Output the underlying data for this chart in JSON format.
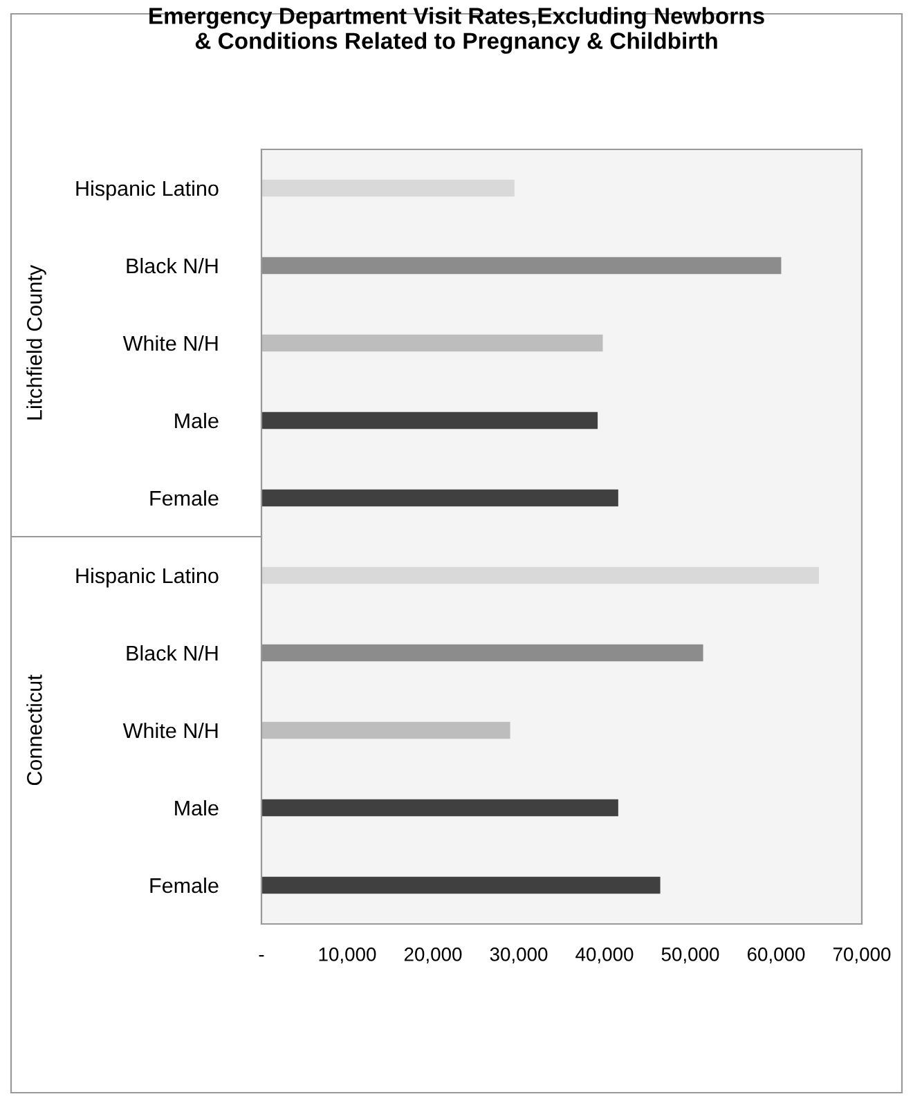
{
  "chart_data": {
    "type": "bar",
    "orientation": "horizontal",
    "title": "Emergency Department Visit Rates,Excluding Newborns\n& Conditions Related to Pregnancy & Childbirth",
    "categories": [
      "Hispanic Latino",
      "Black N/H",
      "White N/H",
      "Male",
      "Female",
      "Hispanic Latino",
      "Black N/H",
      "White N/H",
      "Male",
      "Female"
    ],
    "values": [
      29500,
      60600,
      39800,
      39200,
      41600,
      65000,
      51500,
      29000,
      41600,
      46500
    ],
    "colors": [
      "#d9d9d9",
      "#8c8c8c",
      "#bdbdbd",
      "#404040",
      "#404040",
      "#d9d9d9",
      "#8c8c8c",
      "#bdbdbd",
      "#404040",
      "#404040"
    ],
    "xlim": [
      0,
      70000
    ],
    "xticks": [
      {
        "value": 0,
        "label": "-"
      },
      {
        "value": 10000,
        "label": "10,000"
      },
      {
        "value": 20000,
        "label": "20,000"
      },
      {
        "value": 30000,
        "label": "30,000"
      },
      {
        "value": 40000,
        "label": "40,000"
      },
      {
        "value": 50000,
        "label": "50,000"
      },
      {
        "value": 60000,
        "label": "60,000"
      },
      {
        "value": 70000,
        "label": "70,000"
      }
    ],
    "annotations": [
      "Litchfield County",
      "Connecticut"
    ],
    "grid": false,
    "legend": false
  }
}
